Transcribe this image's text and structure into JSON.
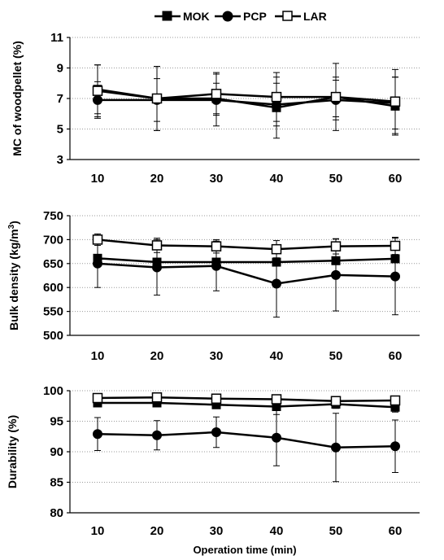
{
  "legend": [
    {
      "label": "MOK",
      "marker": "square-filled"
    },
    {
      "label": "PCP",
      "marker": "circle-filled"
    },
    {
      "label": "LAR",
      "marker": "square-open"
    }
  ],
  "colors": {
    "line": "#000000",
    "grid": "#999999",
    "open_fill": "#ffffff"
  },
  "chart_data": [
    {
      "type": "line",
      "ylabel": "MC of woodpellet (%)",
      "xlabel": "",
      "x": [
        10,
        20,
        30,
        40,
        50,
        60
      ],
      "ylim": [
        3,
        11
      ],
      "yticks": [
        3,
        5,
        7,
        9,
        11
      ],
      "grid": true,
      "legend_position": "top",
      "series": [
        {
          "name": "MOK",
          "values": [
            7.6,
            7.0,
            7.0,
            6.4,
            7.1,
            6.5
          ],
          "errors": [
            1.6,
            2.1,
            1.0,
            2.0,
            1.3,
            1.9
          ]
        },
        {
          "name": "PCP",
          "values": [
            6.9,
            6.9,
            6.9,
            6.6,
            6.9,
            6.7
          ],
          "errors": [
            1.2,
            1.4,
            1.7,
            1.4,
            1.3,
            1.7
          ]
        },
        {
          "name": "LAR",
          "values": [
            7.5,
            7.0,
            7.3,
            7.1,
            7.1,
            6.8
          ],
          "errors": [
            1.7,
            2.1,
            1.4,
            1.6,
            2.2,
            2.1
          ]
        }
      ]
    },
    {
      "type": "line",
      "ylabel": "Bulk density (kg/m3)",
      "xlabel": "",
      "x": [
        10,
        20,
        30,
        40,
        50,
        60
      ],
      "ylim": [
        500,
        750
      ],
      "yticks": [
        500,
        550,
        600,
        650,
        700,
        750
      ],
      "grid": true,
      "series": [
        {
          "name": "MOK",
          "values": [
            661,
            653,
            653,
            653,
            656,
            660
          ],
          "errors": [
            0,
            0,
            0,
            0,
            0,
            0
          ]
        },
        {
          "name": "PCP",
          "values": [
            650,
            642,
            645,
            608,
            626,
            623
          ],
          "errors": [
            50,
            58,
            52,
            70,
            75,
            80
          ]
        },
        {
          "name": "LAR",
          "values": [
            700,
            688,
            686,
            680,
            686,
            687
          ],
          "errors": [
            12,
            15,
            14,
            18,
            16,
            18
          ]
        }
      ]
    },
    {
      "type": "line",
      "ylabel": "Durability (%)",
      "xlabel": "Operation time (min)",
      "x": [
        10,
        20,
        30,
        40,
        50,
        60
      ],
      "ylim": [
        80,
        100
      ],
      "yticks": [
        80,
        85,
        90,
        95,
        100
      ],
      "grid": true,
      "series": [
        {
          "name": "MOK",
          "values": [
            98.0,
            98.0,
            97.7,
            97.4,
            97.8,
            97.3
          ],
          "errors": [
            0.4,
            0.4,
            0.5,
            1.3,
            0.7,
            0.8
          ]
        },
        {
          "name": "PCP",
          "values": [
            92.9,
            92.7,
            93.2,
            92.3,
            90.7,
            90.9
          ],
          "errors": [
            2.7,
            2.4,
            2.5,
            4.6,
            5.6,
            4.3
          ]
        },
        {
          "name": "LAR",
          "values": [
            98.8,
            98.9,
            98.7,
            98.6,
            98.3,
            98.4
          ],
          "errors": [
            0.3,
            0.2,
            0.5,
            0.6,
            0.7,
            0.4
          ]
        }
      ]
    }
  ]
}
